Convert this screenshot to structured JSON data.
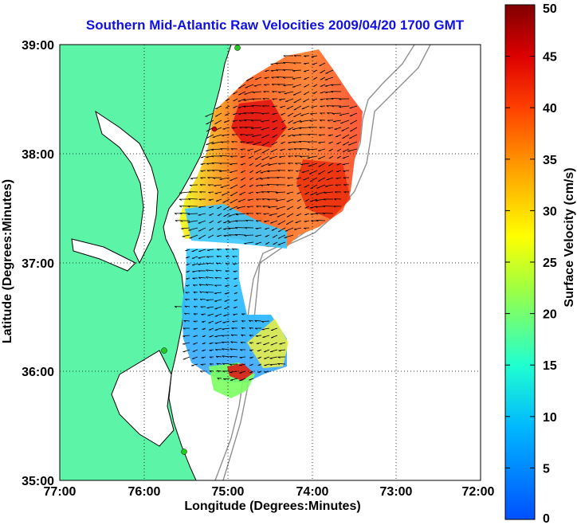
{
  "map": {
    "title": "Southern Mid-Atlantic Raw Velocities 2009/04/20 1700 GMT",
    "xlabel": "Longitude (Degrees:Minutes)",
    "ylabel": "Latitude (Degrees:Minutes)",
    "x_ticks": [
      "77:00",
      "76:00",
      "75:00",
      "74:00",
      "73:00",
      "72:00"
    ],
    "y_ticks": [
      "39:00",
      "38:00",
      "37:00",
      "36:00",
      "35:00"
    ],
    "x_range_deg_west": [
      77,
      72
    ],
    "y_range_deg_north": [
      35,
      39
    ],
    "grid": "dotted",
    "land_color": "#5cf5a8",
    "coast_color": "#000000",
    "bathymetry_color": "#909090",
    "station_color": "#22cc22"
  },
  "colorbar": {
    "label": "Surface Velocity (cm/s)",
    "ticks": [
      "50",
      "45",
      "40",
      "35",
      "30",
      "25",
      "20",
      "15",
      "10",
      "5",
      "0"
    ],
    "min": 0,
    "max": 50,
    "colors": [
      "#0040ff",
      "#00c0ff",
      "#20ffb0",
      "#b0ff30",
      "#ffff00",
      "#ffb000",
      "#ff5000",
      "#e00000",
      "#800000"
    ]
  }
}
